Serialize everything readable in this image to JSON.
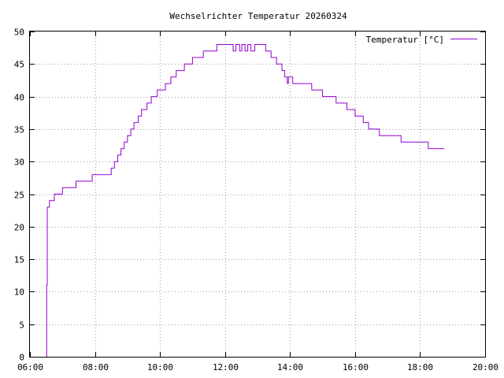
{
  "chart_data": {
    "type": "line",
    "title": "Wechselrichter Temperatur 20260324",
    "xlabel": "",
    "ylabel": "",
    "xlim": [
      "06:00",
      "20:00"
    ],
    "ylim": [
      0,
      50
    ],
    "grid": true,
    "legend_position": "top-right",
    "x_ticks": [
      "06:00",
      "08:00",
      "10:00",
      "12:00",
      "14:00",
      "16:00",
      "18:00",
      "20:00"
    ],
    "y_ticks": [
      "0",
      "5",
      "10",
      "15",
      "20",
      "25",
      "30",
      "35",
      "40",
      "45",
      "50"
    ],
    "series": [
      {
        "name": "Temperatur [°C]",
        "color": "#9400d3",
        "points": [
          [
            "06:30",
            0
          ],
          [
            "06:31",
            11
          ],
          [
            "06:32",
            23
          ],
          [
            "06:36",
            24
          ],
          [
            "06:45",
            25
          ],
          [
            "07:00",
            26
          ],
          [
            "07:25",
            27
          ],
          [
            "07:55",
            28
          ],
          [
            "08:30",
            29
          ],
          [
            "08:36",
            30
          ],
          [
            "08:42",
            31
          ],
          [
            "08:48",
            32
          ],
          [
            "08:54",
            33
          ],
          [
            "09:00",
            34
          ],
          [
            "09:06",
            35
          ],
          [
            "09:12",
            36
          ],
          [
            "09:20",
            37
          ],
          [
            "09:26",
            38
          ],
          [
            "09:36",
            39
          ],
          [
            "09:44",
            40
          ],
          [
            "09:55",
            41
          ],
          [
            "10:10",
            42
          ],
          [
            "10:20",
            43
          ],
          [
            "10:30",
            44
          ],
          [
            "10:45",
            45
          ],
          [
            "11:00",
            46
          ],
          [
            "11:20",
            47
          ],
          [
            "11:45",
            48
          ],
          [
            "12:15",
            47
          ],
          [
            "12:20",
            48
          ],
          [
            "12:27",
            47
          ],
          [
            "12:31",
            48
          ],
          [
            "12:37",
            47
          ],
          [
            "12:42",
            48
          ],
          [
            "12:48",
            47
          ],
          [
            "12:55",
            48
          ],
          [
            "13:15",
            47
          ],
          [
            "13:25",
            46
          ],
          [
            "13:35",
            45
          ],
          [
            "13:45",
            44
          ],
          [
            "13:50",
            43
          ],
          [
            "13:55",
            42
          ],
          [
            "13:57",
            43
          ],
          [
            "14:05",
            42
          ],
          [
            "14:40",
            41
          ],
          [
            "15:00",
            40
          ],
          [
            "15:25",
            39
          ],
          [
            "15:45",
            38
          ],
          [
            "16:00",
            37
          ],
          [
            "16:15",
            36
          ],
          [
            "16:25",
            35
          ],
          [
            "16:45",
            34
          ],
          [
            "17:25",
            33
          ],
          [
            "18:15",
            32
          ],
          [
            "18:45",
            32
          ]
        ]
      }
    ]
  }
}
